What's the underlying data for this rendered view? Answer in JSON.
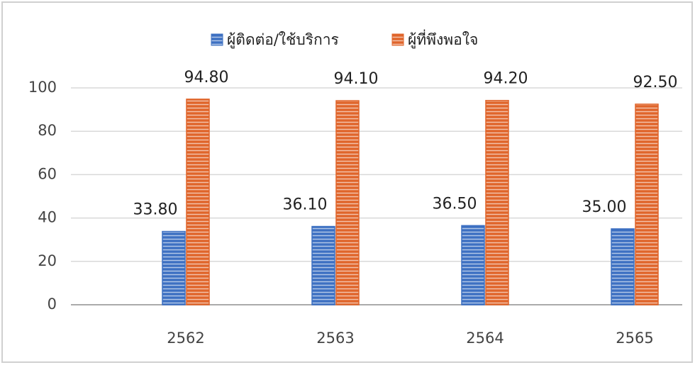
{
  "chart_data": {
    "type": "bar",
    "categories": [
      "2562",
      "2563",
      "2564",
      "2565"
    ],
    "series": [
      {
        "name": "ผู้ติดต่อ/ใช้บริการ",
        "color": "#3d70c2",
        "values": [
          33.8,
          36.1,
          36.5,
          35.0
        ],
        "value_labels": [
          "33.80",
          "36.10",
          "36.50",
          "35.00"
        ]
      },
      {
        "name": "ผู้ที่พึงพอใจ",
        "color": "#e0652b",
        "values": [
          94.8,
          94.1,
          94.2,
          92.5
        ],
        "value_labels": [
          "94.80",
          "94.10",
          "94.20",
          "92.50"
        ]
      }
    ],
    "ylim": [
      0,
      100
    ],
    "yticks": [
      0,
      20,
      40,
      60,
      80,
      100
    ],
    "grid": true,
    "legend": "top"
  }
}
